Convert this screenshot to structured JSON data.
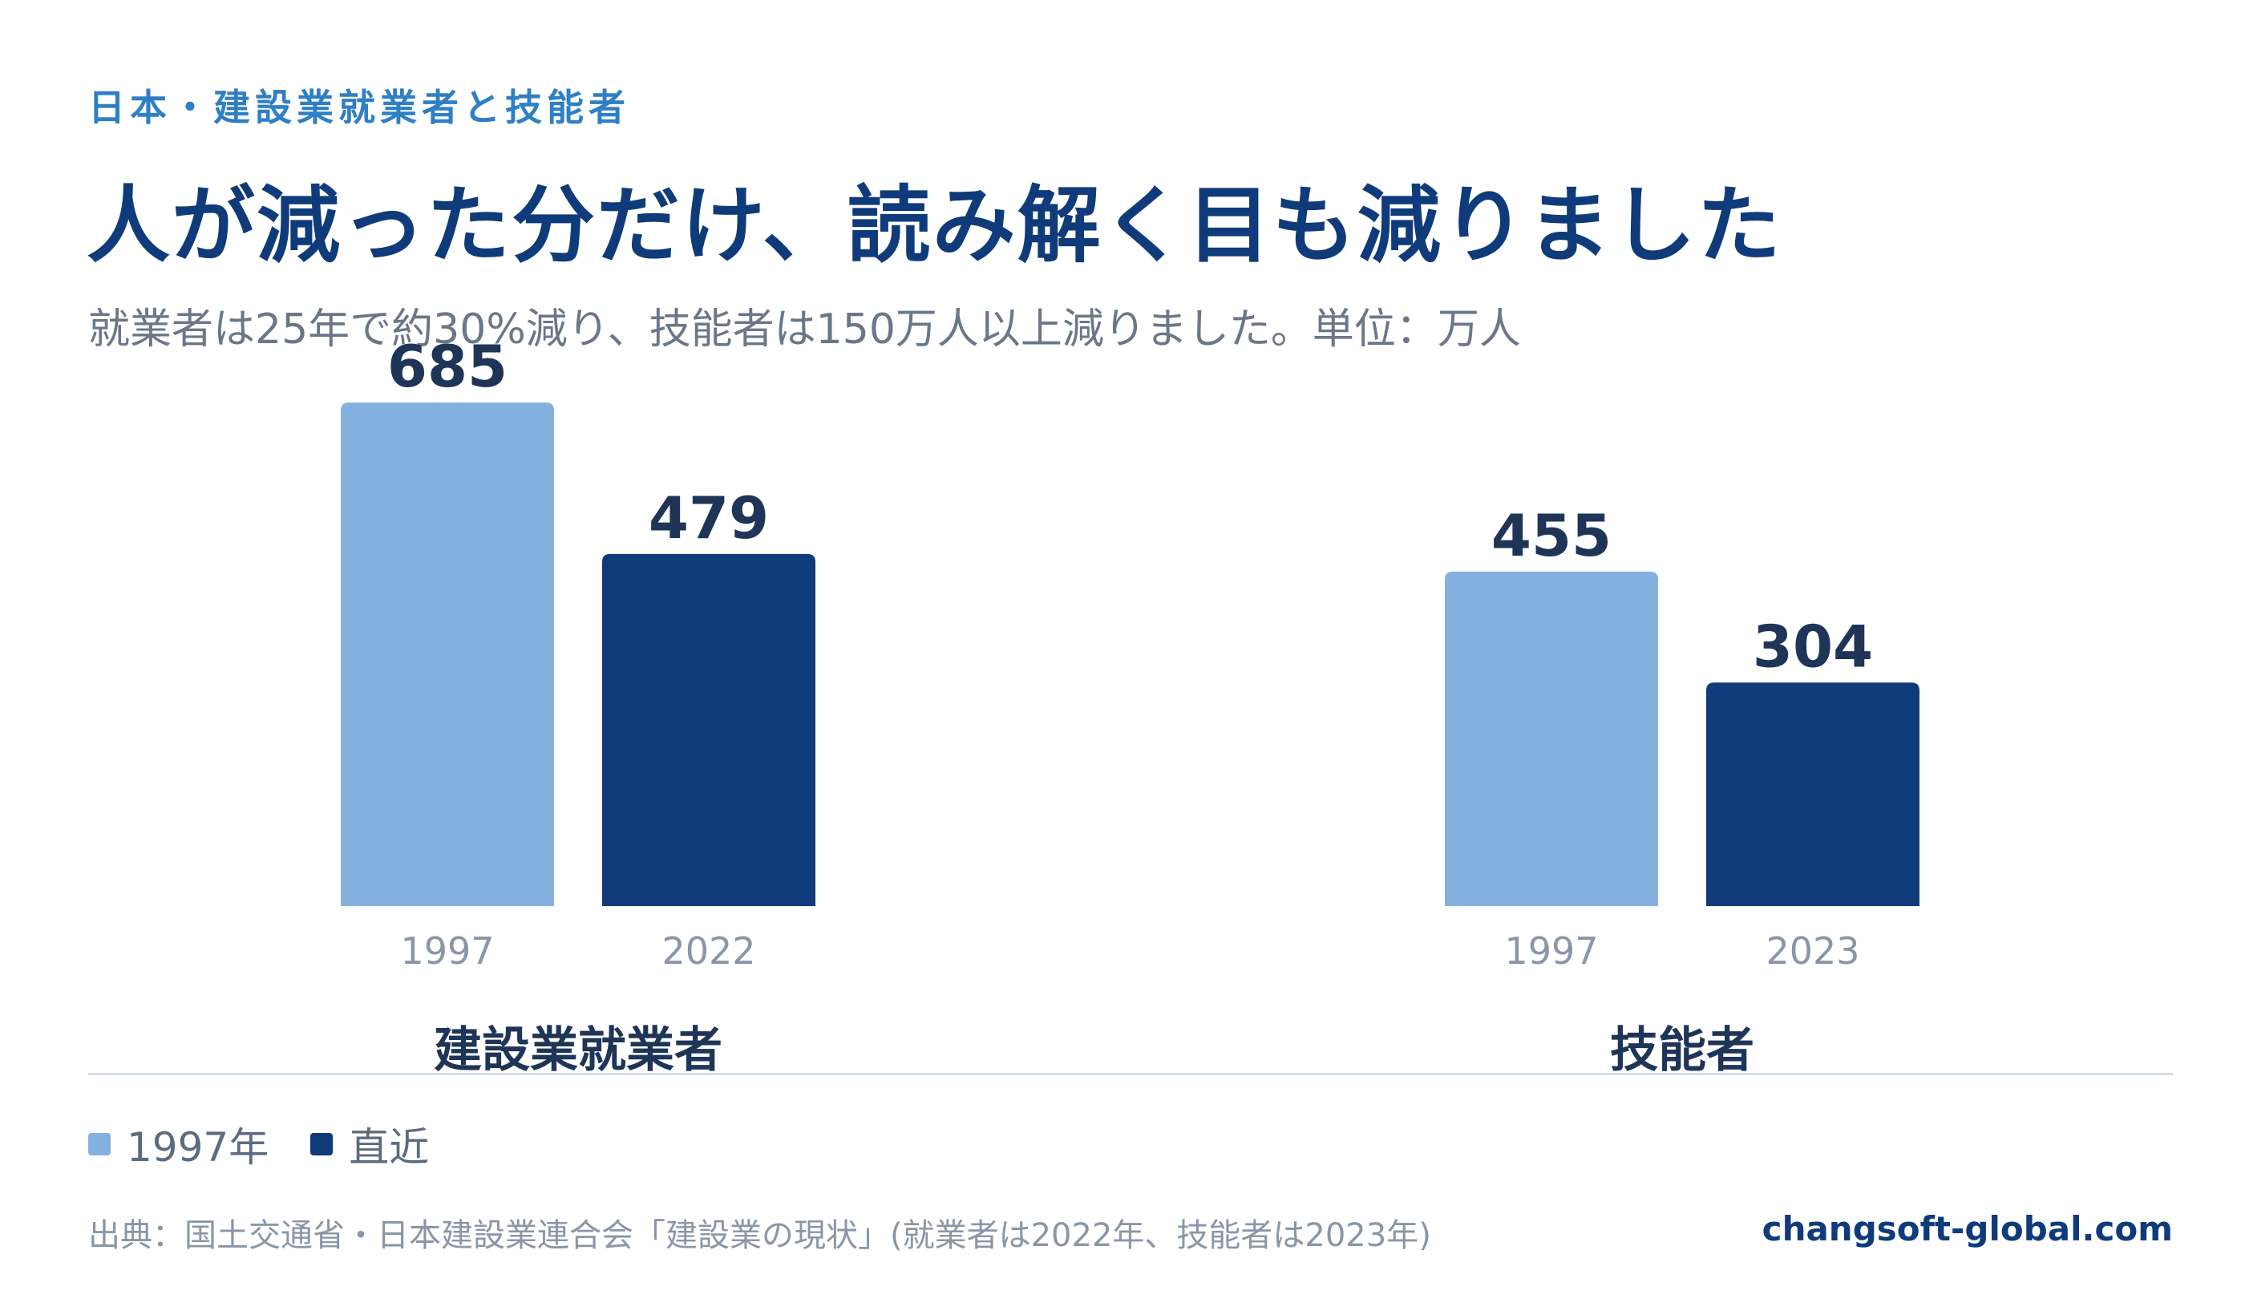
{
  "eyebrow": "日本・建設業就業者と技能者",
  "headline": "人が減った分だけ、読み解く目も減りました",
  "subtitle": "就業者は25年で約30%減り、技能者は150万人以上減りました。単位：万人",
  "legend": {
    "items": [
      {
        "label": "1997年",
        "color": "#84b1df"
      },
      {
        "label": "直近",
        "color": "#0f3b7a"
      }
    ]
  },
  "source": "出典：国土交通省・日本建設業連合会「建設業の現状」(就業者は2022年、技能者は2023年)",
  "brand": "changsoft-global.com",
  "chart_data": {
    "type": "bar",
    "unit": "万人",
    "ylim": [
      0,
      685
    ],
    "grid": false,
    "groups": [
      {
        "name": "建設業就業者",
        "bars": [
          {
            "category": "1997",
            "value": 685,
            "color": "#84b1df"
          },
          {
            "category": "2022",
            "value": 479,
            "color": "#0f3b7a"
          }
        ]
      },
      {
        "name": "技能者",
        "bars": [
          {
            "category": "1997",
            "value": 455,
            "color": "#84b1df"
          },
          {
            "category": "2023",
            "value": 304,
            "color": "#0f3b7a"
          }
        ]
      }
    ]
  }
}
